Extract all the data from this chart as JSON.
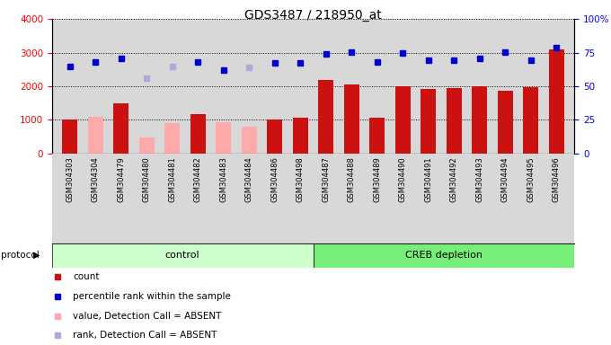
{
  "title": "GDS3487 / 218950_at",
  "samples": [
    "GSM304303",
    "GSM304304",
    "GSM304479",
    "GSM304480",
    "GSM304481",
    "GSM304482",
    "GSM304483",
    "GSM304484",
    "GSM304486",
    "GSM304498",
    "GSM304487",
    "GSM304488",
    "GSM304489",
    "GSM304490",
    "GSM304491",
    "GSM304492",
    "GSM304493",
    "GSM304494",
    "GSM304495",
    "GSM304496"
  ],
  "bar_values": [
    1000,
    null,
    1500,
    null,
    null,
    1180,
    null,
    null,
    1020,
    1060,
    2200,
    2050,
    1070,
    2000,
    1920,
    1950,
    2010,
    1870,
    1960,
    3100
  ],
  "bar_absent_values": [
    null,
    1080,
    null,
    480,
    900,
    null,
    930,
    800,
    null,
    null,
    null,
    null,
    null,
    null,
    null,
    null,
    null,
    null,
    null,
    null
  ],
  "rank_values": [
    2600,
    2720,
    2840,
    null,
    null,
    2720,
    2490,
    null,
    2700,
    2700,
    2950,
    3020,
    2720,
    3000,
    2780,
    2780,
    2820,
    3020,
    2780,
    3150
  ],
  "rank_absent_values": [
    null,
    null,
    null,
    2230,
    2580,
    null,
    null,
    2550,
    null,
    null,
    null,
    null,
    null,
    null,
    null,
    null,
    null,
    null,
    null,
    null
  ],
  "n_control": 10,
  "control_label": "control",
  "treatment_label": "CREB depletion",
  "protocol_label": "protocol",
  "ylim_left": [
    0,
    4000
  ],
  "ylim_right": [
    0,
    100
  ],
  "yticks_left": [
    0,
    1000,
    2000,
    3000,
    4000
  ],
  "yticks_right": [
    0,
    25,
    50,
    75,
    100
  ],
  "bar_color": "#cc1111",
  "bar_absent_color": "#ffaaaa",
  "rank_color": "#0000cc",
  "rank_absent_color": "#aaaadd",
  "bg_color": "#d8d8d8",
  "control_bg": "#ccffcc",
  "treatment_bg": "#77ee77",
  "legend_items": [
    {
      "label": "count",
      "color": "#cc1111"
    },
    {
      "label": "percentile rank within the sample",
      "color": "#0000cc"
    },
    {
      "label": "value, Detection Call = ABSENT",
      "color": "#ffaaaa"
    },
    {
      "label": "rank, Detection Call = ABSENT",
      "color": "#aaaadd"
    }
  ]
}
